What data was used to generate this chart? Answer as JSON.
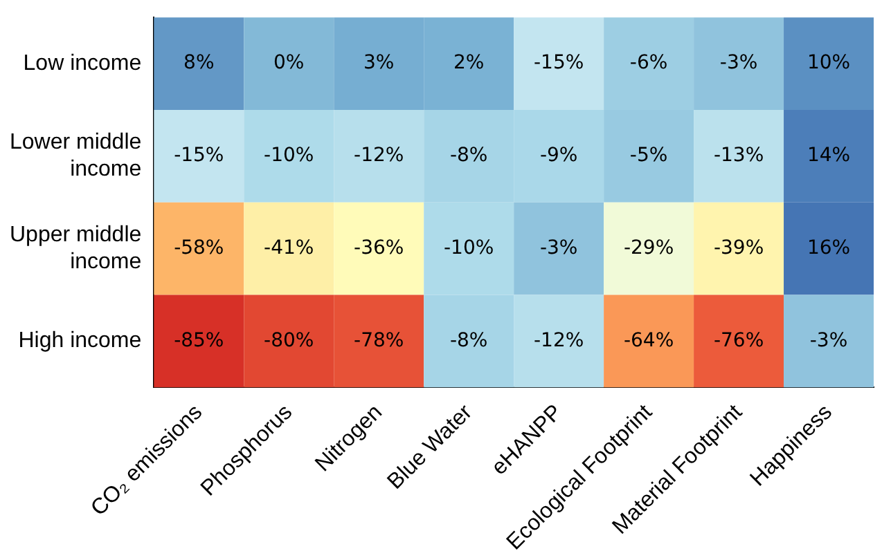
{
  "chart_data": {
    "type": "heatmap",
    "categories": [
      "CO₂ emissions",
      "Phosphorus",
      "Nitrogen",
      "Blue Water",
      "eHANPP",
      "Ecological Footprint",
      "Material Footprint",
      "Happiness"
    ],
    "y_categories": [
      "Low income",
      "Lower middle income",
      "Upper middle income",
      "High income"
    ],
    "cells": [
      [
        8,
        0,
        3,
        2,
        -15,
        -6,
        -3,
        10
      ],
      [
        -15,
        -10,
        -12,
        -8,
        -9,
        -5,
        -13,
        14
      ],
      [
        -58,
        -41,
        -36,
        -10,
        -3,
        -29,
        -39,
        16
      ],
      [
        -85,
        -80,
        -78,
        -8,
        -12,
        -64,
        -76,
        -3
      ]
    ],
    "cell_labels": [
      [
        "8%",
        "0%",
        "3%",
        "2%",
        "-15%",
        "-6%",
        "-3%",
        "10%"
      ],
      [
        "-15%",
        "-10%",
        "-12%",
        "-8%",
        "-9%",
        "-5%",
        "-13%",
        "14%"
      ],
      [
        "-58%",
        "-41%",
        "-36%",
        "-10%",
        "-3%",
        "-29%",
        "-39%",
        "16%"
      ],
      [
        "-85%",
        "-80%",
        "-78%",
        "-8%",
        "-12%",
        "-64%",
        "-76%",
        "-3%"
      ]
    ]
  }
}
